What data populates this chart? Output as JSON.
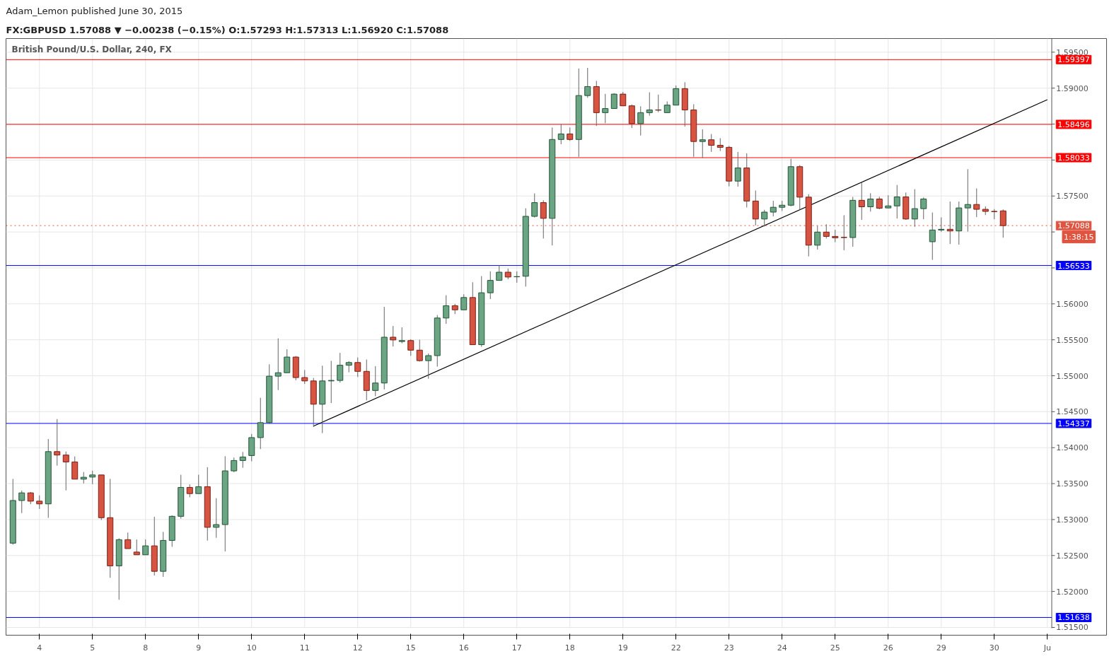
{
  "chart_data": {
    "type": "candlestick",
    "title": "British Pound/U.S. Dollar, 240, FX",
    "annotations": [
      "Adam_Lemon published June 30, 2015",
      "FX:GBPUSD 1.57088 ▼ −0.00238 (−0.15%) O:1.57293 H:1.57313 L:1.56920 C:1.57088",
      "1:38:15"
    ],
    "categories": [
      null,
      null,
      null,
      "4",
      null,
      null,
      null,
      null,
      null,
      "5",
      null,
      null,
      null,
      null,
      null,
      "8",
      null,
      null,
      null,
      null,
      null,
      "9",
      null,
      null,
      null,
      null,
      null,
      "10",
      null,
      null,
      null,
      null,
      null,
      "11",
      null,
      null,
      null,
      null,
      null,
      "12",
      null,
      null,
      null,
      null,
      null,
      "15",
      null,
      null,
      null,
      null,
      null,
      "16",
      null,
      null,
      null,
      null,
      null,
      "17",
      null,
      null,
      null,
      null,
      null,
      "18",
      null,
      null,
      null,
      null,
      null,
      "19",
      null,
      null,
      null,
      null,
      null,
      "22",
      null,
      null,
      null,
      null,
      null,
      "23",
      null,
      null,
      null,
      null,
      null,
      "24",
      null,
      null,
      null,
      null,
      null,
      "25",
      null,
      null,
      null,
      null,
      null,
      "26",
      null,
      null,
      null,
      null,
      null,
      "29",
      null,
      null,
      null,
      null,
      null,
      "30",
      null,
      null,
      null,
      null,
      null,
      "Ju"
    ],
    "ohlc": [
      [
        1.52672,
        1.53565,
        1.5265,
        1.53265
      ],
      [
        1.53265,
        1.53403,
        1.5309,
        1.53371
      ],
      [
        1.53371,
        1.53384,
        1.53214,
        1.53256
      ],
      [
        1.53256,
        1.53336,
        1.53147,
        1.53218
      ],
      [
        1.53218,
        1.5412,
        1.53023,
        1.53945
      ],
      [
        1.53945,
        1.54398,
        1.5375,
        1.53897
      ],
      [
        1.53897,
        1.53945,
        1.53406,
        1.53801
      ],
      [
        1.53801,
        1.53878,
        1.53562,
        1.53562
      ],
      [
        1.53562,
        1.53661,
        1.53502,
        1.53588
      ],
      [
        1.53591,
        1.5368,
        1.53492,
        1.5362
      ],
      [
        1.5362,
        1.5362,
        1.52994,
        1.53026
      ],
      [
        1.53026,
        1.53565,
        1.5219,
        1.52356
      ],
      [
        1.52356,
        1.52739,
        1.51884,
        1.5272
      ],
      [
        1.5272,
        1.52819,
        1.52596,
        1.52596
      ],
      [
        1.52548,
        1.52723,
        1.5251,
        1.5251
      ],
      [
        1.5251,
        1.52723,
        1.5251,
        1.52634
      ],
      [
        1.52634,
        1.53039,
        1.52222,
        1.5228
      ],
      [
        1.5228,
        1.52828,
        1.52203,
        1.5271
      ],
      [
        1.5271,
        1.53058,
        1.52621,
        1.53045
      ],
      [
        1.53045,
        1.53623,
        1.53013,
        1.53447
      ],
      [
        1.53447,
        1.53489,
        1.5331,
        1.53361
      ],
      [
        1.53361,
        1.53623,
        1.53361,
        1.53457
      ],
      [
        1.53457,
        1.53728,
        1.52707,
        1.52892
      ],
      [
        1.52892,
        1.53297,
        1.52746,
        1.5293
      ],
      [
        1.5293,
        1.53881,
        1.52557,
        1.53677
      ],
      [
        1.53677,
        1.53862,
        1.53658,
        1.53821
      ],
      [
        1.53821,
        1.5394,
        1.5372,
        1.5387
      ],
      [
        1.5389,
        1.5419,
        1.5381,
        1.5414
      ],
      [
        1.5414,
        1.54693,
        1.5398,
        1.54348
      ],
      [
        1.54348,
        1.55159,
        1.5433,
        1.54994
      ],
      [
        1.54994,
        1.5552,
        1.54801,
        1.55042
      ],
      [
        1.55042,
        1.55368,
        1.55042,
        1.5526
      ],
      [
        1.5526,
        1.55273,
        1.54937,
        1.54975
      ],
      [
        1.54975,
        1.5508,
        1.54886,
        1.54928
      ],
      [
        1.54928,
        1.54969,
        1.54287,
        1.54604
      ],
      [
        1.54604,
        1.5514,
        1.54202,
        1.54928
      ],
      [
        1.54928,
        1.55207,
        1.5462,
        1.54935
      ],
      [
        1.54935,
        1.55318,
        1.54905,
        1.55146
      ],
      [
        1.55146,
        1.55203,
        1.55048,
        1.55184
      ],
      [
        1.55184,
        1.55254,
        1.54982,
        1.55061
      ],
      [
        1.55061,
        1.55226,
        1.54658,
        1.54795
      ],
      [
        1.54795,
        1.55134,
        1.54715,
        1.54899
      ],
      [
        1.54899,
        1.55958,
        1.5481,
        1.55536
      ],
      [
        1.55536,
        1.55692,
        1.55406,
        1.55498
      ],
      [
        1.55476,
        1.55673,
        1.55451,
        1.55489
      ],
      [
        1.55489,
        1.55508,
        1.55277,
        1.55356
      ],
      [
        1.55356,
        1.55501,
        1.55197,
        1.5521
      ],
      [
        1.5521,
        1.55311,
        1.54958,
        1.5528
      ],
      [
        1.5528,
        1.55844,
        1.55127,
        1.55803
      ],
      [
        1.55803,
        1.5612,
        1.55723,
        1.55974
      ],
      [
        1.55974,
        1.55999,
        1.55857,
        1.55917
      ],
      [
        1.55917,
        1.56133,
        1.55917,
        1.56088
      ],
      [
        1.56088,
        1.563,
        1.55432,
        1.55432
      ],
      [
        1.55432,
        1.56386,
        1.55403,
        1.56154
      ],
      [
        1.56154,
        1.56452,
        1.56066,
        1.56326
      ],
      [
        1.56326,
        1.56538,
        1.56326,
        1.5644
      ],
      [
        1.5644,
        1.5649,
        1.56342,
        1.56373
      ],
      [
        1.56376,
        1.56452,
        1.56294,
        1.56379
      ],
      [
        1.56384,
        1.57329,
        1.5624,
        1.57217
      ],
      [
        1.57217,
        1.57536,
        1.57201,
        1.57408
      ],
      [
        1.57408,
        1.5744,
        1.56909,
        1.57189
      ],
      [
        1.57189,
        1.58452,
        1.56813,
        1.58286
      ],
      [
        1.58286,
        1.58497,
        1.5822,
        1.58363
      ],
      [
        1.58363,
        1.58452,
        1.58267,
        1.58286
      ],
      [
        1.58286,
        1.59273,
        1.58045,
        1.58897
      ],
      [
        1.58897,
        1.59282,
        1.58866,
        1.59022
      ],
      [
        1.59022,
        1.59101,
        1.58474,
        1.58659
      ],
      [
        1.58659,
        1.5892,
        1.58512,
        1.58716
      ],
      [
        1.58716,
        1.5893,
        1.58716,
        1.58917
      ],
      [
        1.58917,
        1.58948,
        1.58754,
        1.58754
      ],
      [
        1.58754,
        1.58773,
        1.58446,
        1.58506
      ],
      [
        1.58506,
        1.58748,
        1.58341,
        1.58659
      ],
      [
        1.58659,
        1.58942,
        1.58617,
        1.58697
      ],
      [
        1.58697,
        1.5891,
        1.58665,
        1.58694
      ],
      [
        1.58659,
        1.58815,
        1.58659,
        1.58764
      ],
      [
        1.58764,
        1.59037,
        1.58764,
        1.58993
      ],
      [
        1.58993,
        1.59082,
        1.58465,
        1.58697
      ],
      [
        1.58697,
        1.58776,
        1.58045,
        1.58258
      ],
      [
        1.58258,
        1.58427,
        1.58029,
        1.58282
      ],
      [
        1.58282,
        1.58362,
        1.58113,
        1.58205
      ],
      [
        1.58205,
        1.58304,
        1.58126,
        1.58177
      ],
      [
        1.58177,
        1.58196,
        1.57634,
        1.57707
      ],
      [
        1.57707,
        1.58113,
        1.5763,
        1.5789
      ],
      [
        1.5789,
        1.58094,
        1.5734,
        1.5743
      ],
      [
        1.5743,
        1.57576,
        1.57091,
        1.5718
      ],
      [
        1.5718,
        1.57308,
        1.57075,
        1.57276
      ],
      [
        1.57276,
        1.57433,
        1.57216,
        1.57343
      ],
      [
        1.57343,
        1.57433,
        1.57292,
        1.57372
      ],
      [
        1.57372,
        1.58017,
        1.57356,
        1.57908
      ],
      [
        1.57908,
        1.5793,
        1.57308,
        1.57484
      ],
      [
        1.57484,
        1.57525,
        1.5666,
        1.56816
      ],
      [
        1.56816,
        1.57085,
        1.56756,
        1.56998
      ],
      [
        1.56998,
        1.57107,
        1.56909,
        1.56938
      ],
      [
        1.56938,
        1.5703,
        1.56858,
        1.56919
      ],
      [
        1.56925,
        1.57232,
        1.56746,
        1.56922
      ],
      [
        1.56922,
        1.57487,
        1.56794,
        1.5744
      ],
      [
        1.5744,
        1.57691,
        1.57168,
        1.5735
      ],
      [
        1.5735,
        1.57538,
        1.57283,
        1.57458
      ],
      [
        1.57458,
        1.5749,
        1.57315,
        1.5733
      ],
      [
        1.57334,
        1.5751,
        1.57327,
        1.57362
      ],
      [
        1.57362,
        1.57653,
        1.57187,
        1.57487
      ],
      [
        1.57487,
        1.57548,
        1.57168,
        1.5718
      ],
      [
        1.5718,
        1.57595,
        1.57072,
        1.57324
      ],
      [
        1.57324,
        1.5748,
        1.57177,
        1.57458
      ],
      [
        1.56864,
        1.5727,
        1.56612,
        1.57027
      ],
      [
        1.57027,
        1.57203,
        1.57002,
        1.57037
      ],
      [
        1.57037,
        1.57423,
        1.56832,
        1.57014
      ],
      [
        1.57014,
        1.57423,
        1.56823,
        1.57334
      ],
      [
        1.57334,
        1.57873,
        1.57005,
        1.57382
      ],
      [
        1.57382,
        1.57605,
        1.57206,
        1.57315
      ],
      [
        1.57315,
        1.57356,
        1.57235,
        1.57286
      ],
      [
        1.57286,
        1.57318,
        1.57177,
        1.57283
      ],
      [
        1.57293,
        1.57313,
        1.5692,
        1.57088
      ],
      null,
      null,
      null,
      null,
      null
    ],
    "colors": [
      "#6ba583",
      "#6ba583",
      "#d75442",
      "#d75442",
      "#6ba583",
      "#d75442",
      "#d75442",
      "#d75442",
      "#6ba583",
      "#6ba583",
      "#d75442",
      "#d75442",
      "#6ba583",
      "#d75442",
      "#d75442",
      "#6ba583",
      "#d75442",
      "#6ba583",
      "#6ba583",
      "#6ba583",
      "#d75442",
      "#6ba583",
      "#d75442",
      "#6ba583",
      "#6ba583",
      "#6ba583",
      "#6ba583",
      "#6ba583",
      "#6ba583",
      "#6ba583",
      "#6ba583",
      "#6ba583",
      "#d75442",
      "#d75442",
      "#d75442",
      "#6ba583",
      "#6ba583",
      "#6ba583",
      "#6ba583",
      "#d75442",
      "#d75442",
      "#6ba583",
      "#6ba583",
      "#d75442",
      "#6ba583",
      "#d75442",
      "#d75442",
      "#6ba583",
      "#6ba583",
      "#6ba583",
      "#d75442",
      "#6ba583",
      "#d75442",
      "#6ba583",
      "#6ba583",
      "#6ba583",
      "#d75442",
      "#6ba583",
      "#6ba583",
      "#6ba583",
      "#d75442",
      "#6ba583",
      "#6ba583",
      "#d75442",
      "#6ba583",
      "#6ba583",
      "#d75442",
      "#6ba583",
      "#6ba583",
      "#d75442",
      "#d75442",
      "#6ba583",
      "#6ba583",
      "#d75442",
      "#6ba583",
      "#6ba583",
      "#d75442",
      "#d75442",
      "#6ba583",
      "#d75442",
      "#d75442",
      "#d75442",
      "#6ba583",
      "#d75442",
      "#d75442",
      "#6ba583",
      "#6ba583",
      "#6ba583",
      "#6ba583",
      "#d75442",
      "#d75442",
      "#6ba583",
      "#d75442",
      "#d75442",
      "#d75442",
      "#6ba583",
      "#d75442",
      "#6ba583",
      "#d75442",
      "#6ba583",
      "#6ba583",
      "#d75442",
      "#6ba583",
      "#6ba583",
      "#6ba583",
      "#6ba583",
      "#d75442",
      "#6ba583",
      "#6ba583",
      "#d75442",
      "#d75442",
      "#d75442",
      "#d75442",
      null,
      null,
      null,
      null,
      null
    ],
    "series": [
      {
        "type": "line",
        "values": [
          null,
          null,
          null,
          null,
          null,
          null,
          null,
          null,
          null,
          null,
          null,
          null,
          null,
          null,
          null,
          null,
          null,
          null,
          null,
          null,
          null,
          null,
          null,
          null,
          null,
          null,
          null,
          null,
          null,
          null,
          null,
          null,
          null,
          null,
          1.543,
          null,
          null,
          null,
          null,
          null,
          null,
          null,
          null,
          null,
          null,
          null,
          null,
          null,
          null,
          null,
          null,
          null,
          null,
          null,
          null,
          null,
          null,
          null,
          null,
          null,
          null,
          null,
          null,
          null,
          null,
          null,
          null,
          null,
          null,
          null,
          null,
          null,
          null,
          null,
          null,
          null,
          null,
          null,
          null,
          null,
          null,
          null,
          null,
          null,
          null,
          null,
          null,
          null,
          null,
          null,
          null,
          null,
          null,
          null,
          null,
          null,
          null,
          null,
          null,
          null,
          null,
          null,
          null,
          null,
          null,
          null,
          null,
          null,
          null,
          null,
          null,
          null,
          null,
          null,
          null,
          null,
          null,
          1.5884
        ],
        "color": "#000000"
      }
    ],
    "ref_lines": [
      {
        "axis": "y",
        "value": 1.59397,
        "label": "1.59397",
        "color": "#ff0000"
      },
      {
        "axis": "y",
        "value": 1.58496,
        "label": "1.58496",
        "color": "#ff0000"
      },
      {
        "axis": "y",
        "value": 1.58033,
        "label": "1.58033",
        "color": "#ff0000"
      },
      {
        "axis": "y",
        "value": 1.57088,
        "label": "1.57088",
        "color": "#e0533f",
        "line_style": "dotted"
      },
      {
        "axis": "y",
        "value": 1.56533,
        "label": "1.56533",
        "color": "#0000ff"
      },
      {
        "axis": "y",
        "value": 1.54337,
        "label": "1.54337",
        "color": "#0000ff"
      },
      {
        "axis": "y",
        "value": 1.51638,
        "label": "1.51638",
        "color": "#0000ff"
      }
    ],
    "ylim": [
      1.5149,
      1.5969
    ],
    "yticks": [
      {
        "value": 1.515,
        "label": "1.51500"
      },
      {
        "value": 1.52,
        "label": "1.52000"
      },
      {
        "value": 1.525,
        "label": "1.52500"
      },
      {
        "value": 1.53,
        "label": "1.53000"
      },
      {
        "value": 1.535,
        "label": "1.53500"
      },
      {
        "value": 1.54,
        "label": "1.54000"
      },
      {
        "value": 1.545,
        "label": "1.54500"
      },
      {
        "value": 1.55,
        "label": "1.55000"
      },
      {
        "value": 1.555,
        "label": "1.55500"
      },
      {
        "value": 1.56,
        "label": "1.56000"
      },
      {
        "value": 1.565,
        "label": null
      },
      {
        "value": 1.57,
        "label": null
      },
      {
        "value": 1.575,
        "label": "1.57500"
      },
      {
        "value": 1.58,
        "label": null
      },
      {
        "value": 1.585,
        "label": null
      },
      {
        "value": 1.59,
        "label": "1.59000"
      },
      {
        "value": 1.595,
        "label": "1.59500"
      }
    ],
    "grid": true
  }
}
